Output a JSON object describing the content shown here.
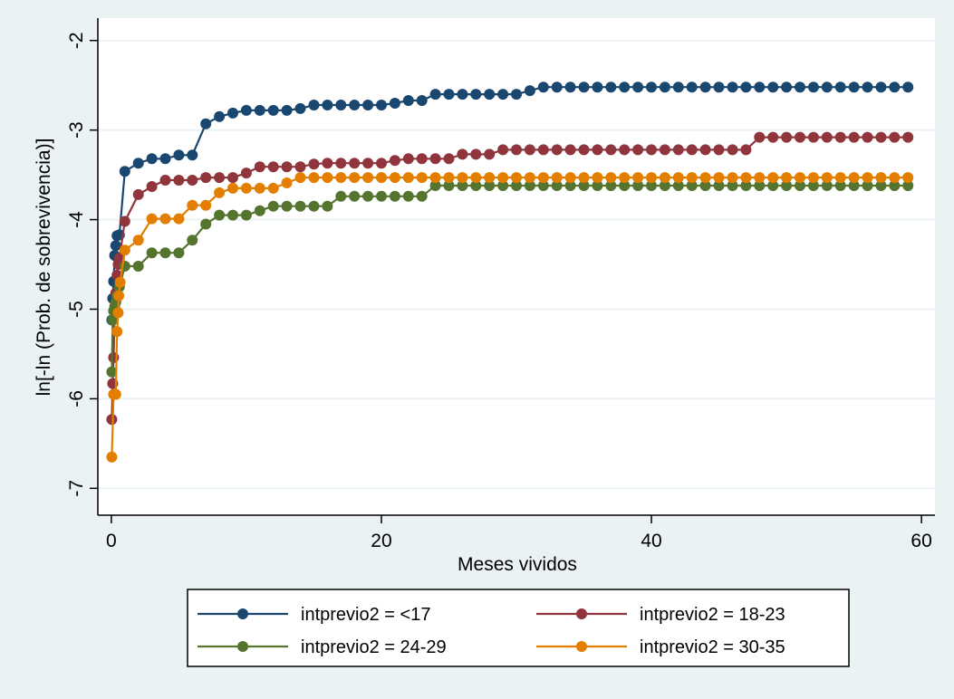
{
  "chart_data": {
    "type": "line",
    "xlabel": "Meses vividos",
    "ylabel": "ln[-ln (Prob. de sobrevivencia)]",
    "xlim": [
      -1,
      61
    ],
    "ylim": [
      -7.3,
      -1.75
    ],
    "xticks": [
      0,
      20,
      40,
      60
    ],
    "yticks": [
      -7,
      -6,
      -5,
      -4,
      -3,
      -2
    ],
    "grid": "horizontal",
    "legend_position": "bottom",
    "series": [
      {
        "name": "intprevio2 = <17",
        "color": "#1a476f",
        "points": [
          [
            0.03,
            -5.12
          ],
          [
            0.1,
            -4.88
          ],
          [
            0.17,
            -4.69
          ],
          [
            0.25,
            -4.4
          ],
          [
            0.33,
            -4.29
          ],
          [
            0.42,
            -4.18
          ],
          [
            0.6,
            -4.17
          ],
          [
            1,
            -3.46
          ],
          [
            2,
            -3.37
          ],
          [
            3,
            -3.32
          ],
          [
            4,
            -3.32
          ],
          [
            5,
            -3.28
          ],
          [
            6,
            -3.28
          ],
          [
            7,
            -2.93
          ],
          [
            8,
            -2.85
          ],
          [
            9,
            -2.81
          ],
          [
            10,
            -2.78
          ],
          [
            11,
            -2.78
          ],
          [
            12,
            -2.78
          ],
          [
            13,
            -2.78
          ],
          [
            14,
            -2.76
          ],
          [
            15,
            -2.72
          ],
          [
            16,
            -2.72
          ],
          [
            17,
            -2.72
          ],
          [
            18,
            -2.72
          ],
          [
            19,
            -2.72
          ],
          [
            20,
            -2.72
          ],
          [
            21,
            -2.7
          ],
          [
            22,
            -2.67
          ],
          [
            23,
            -2.67
          ],
          [
            24,
            -2.6
          ],
          [
            25,
            -2.6
          ],
          [
            26,
            -2.6
          ],
          [
            27,
            -2.6
          ],
          [
            28,
            -2.6
          ],
          [
            29,
            -2.6
          ],
          [
            30,
            -2.6
          ],
          [
            31,
            -2.56
          ],
          [
            32,
            -2.52
          ],
          [
            33,
            -2.52
          ],
          [
            34,
            -2.52
          ],
          [
            35,
            -2.52
          ],
          [
            36,
            -2.52
          ],
          [
            37,
            -2.52
          ],
          [
            38,
            -2.52
          ],
          [
            39,
            -2.52
          ],
          [
            40,
            -2.52
          ],
          [
            41,
            -2.52
          ],
          [
            42,
            -2.52
          ],
          [
            43,
            -2.52
          ],
          [
            44,
            -2.52
          ],
          [
            45,
            -2.52
          ],
          [
            46,
            -2.52
          ],
          [
            47,
            -2.52
          ],
          [
            48,
            -2.52
          ],
          [
            49,
            -2.52
          ],
          [
            50,
            -2.52
          ],
          [
            51,
            -2.52
          ],
          [
            52,
            -2.52
          ],
          [
            53,
            -2.52
          ],
          [
            54,
            -2.52
          ],
          [
            55,
            -2.52
          ],
          [
            56,
            -2.52
          ],
          [
            57,
            -2.52
          ],
          [
            58,
            -2.52
          ],
          [
            59,
            -2.52
          ]
        ]
      },
      {
        "name": "intprevio2 = 18-23",
        "color": "#90353b",
        "points": [
          [
            0.03,
            -6.23
          ],
          [
            0.1,
            -5.83
          ],
          [
            0.17,
            -5.54
          ],
          [
            0.25,
            -5.02
          ],
          [
            0.33,
            -4.82
          ],
          [
            0.42,
            -4.62
          ],
          [
            0.5,
            -4.5
          ],
          [
            0.6,
            -4.43
          ],
          [
            1,
            -4.02
          ],
          [
            2,
            -3.72
          ],
          [
            3,
            -3.63
          ],
          [
            4,
            -3.56
          ],
          [
            5,
            -3.56
          ],
          [
            6,
            -3.56
          ],
          [
            7,
            -3.53
          ],
          [
            8,
            -3.53
          ],
          [
            9,
            -3.53
          ],
          [
            10,
            -3.48
          ],
          [
            11,
            -3.41
          ],
          [
            12,
            -3.41
          ],
          [
            13,
            -3.41
          ],
          [
            14,
            -3.41
          ],
          [
            15,
            -3.38
          ],
          [
            16,
            -3.37
          ],
          [
            17,
            -3.37
          ],
          [
            18,
            -3.37
          ],
          [
            19,
            -3.37
          ],
          [
            20,
            -3.37
          ],
          [
            21,
            -3.34
          ],
          [
            22,
            -3.32
          ],
          [
            23,
            -3.32
          ],
          [
            24,
            -3.32
          ],
          [
            25,
            -3.32
          ],
          [
            26,
            -3.27
          ],
          [
            27,
            -3.27
          ],
          [
            28,
            -3.27
          ],
          [
            29,
            -3.22
          ],
          [
            30,
            -3.22
          ],
          [
            31,
            -3.22
          ],
          [
            32,
            -3.22
          ],
          [
            33,
            -3.22
          ],
          [
            34,
            -3.22
          ],
          [
            35,
            -3.22
          ],
          [
            36,
            -3.22
          ],
          [
            37,
            -3.22
          ],
          [
            38,
            -3.22
          ],
          [
            39,
            -3.22
          ],
          [
            40,
            -3.22
          ],
          [
            41,
            -3.22
          ],
          [
            42,
            -3.22
          ],
          [
            43,
            -3.22
          ],
          [
            44,
            -3.22
          ],
          [
            45,
            -3.22
          ],
          [
            46,
            -3.22
          ],
          [
            47,
            -3.22
          ],
          [
            48,
            -3.08
          ],
          [
            49,
            -3.08
          ],
          [
            50,
            -3.08
          ],
          [
            51,
            -3.08
          ],
          [
            52,
            -3.08
          ],
          [
            53,
            -3.08
          ],
          [
            54,
            -3.08
          ],
          [
            55,
            -3.08
          ],
          [
            56,
            -3.08
          ],
          [
            57,
            -3.08
          ],
          [
            58,
            -3.08
          ],
          [
            59,
            -3.08
          ]
        ]
      },
      {
        "name": "intprevio2 = 24-29",
        "color": "#55752f",
        "points": [
          [
            0.03,
            -5.7
          ],
          [
            0.1,
            -5.12
          ],
          [
            0.17,
            -5.02
          ],
          [
            0.25,
            -4.97
          ],
          [
            0.33,
            -4.92
          ],
          [
            0.42,
            -4.85
          ],
          [
            0.6,
            -4.75
          ],
          [
            1,
            -4.52
          ],
          [
            2,
            -4.52
          ],
          [
            3,
            -4.37
          ],
          [
            4,
            -4.37
          ],
          [
            5,
            -4.37
          ],
          [
            6,
            -4.23
          ],
          [
            7,
            -4.05
          ],
          [
            8,
            -3.95
          ],
          [
            9,
            -3.95
          ],
          [
            10,
            -3.95
          ],
          [
            11,
            -3.9
          ],
          [
            12,
            -3.85
          ],
          [
            13,
            -3.85
          ],
          [
            14,
            -3.85
          ],
          [
            15,
            -3.85
          ],
          [
            16,
            -3.85
          ],
          [
            17,
            -3.74
          ],
          [
            18,
            -3.74
          ],
          [
            19,
            -3.74
          ],
          [
            20,
            -3.74
          ],
          [
            21,
            -3.74
          ],
          [
            22,
            -3.74
          ],
          [
            23,
            -3.74
          ],
          [
            24,
            -3.62
          ],
          [
            25,
            -3.62
          ],
          [
            26,
            -3.62
          ],
          [
            27,
            -3.62
          ],
          [
            28,
            -3.62
          ],
          [
            29,
            -3.62
          ],
          [
            30,
            -3.62
          ],
          [
            31,
            -3.62
          ],
          [
            32,
            -3.62
          ],
          [
            33,
            -3.62
          ],
          [
            34,
            -3.62
          ],
          [
            35,
            -3.62
          ],
          [
            36,
            -3.62
          ],
          [
            37,
            -3.62
          ],
          [
            38,
            -3.62
          ],
          [
            39,
            -3.62
          ],
          [
            40,
            -3.62
          ],
          [
            41,
            -3.62
          ],
          [
            42,
            -3.62
          ],
          [
            43,
            -3.62
          ],
          [
            44,
            -3.62
          ],
          [
            45,
            -3.62
          ],
          [
            46,
            -3.62
          ],
          [
            47,
            -3.62
          ],
          [
            48,
            -3.62
          ],
          [
            49,
            -3.62
          ],
          [
            50,
            -3.62
          ],
          [
            51,
            -3.62
          ],
          [
            52,
            -3.62
          ],
          [
            53,
            -3.62
          ],
          [
            54,
            -3.62
          ],
          [
            55,
            -3.62
          ],
          [
            56,
            -3.62
          ],
          [
            57,
            -3.62
          ],
          [
            58,
            -3.62
          ],
          [
            59,
            -3.62
          ]
        ]
      },
      {
        "name": "intprevio2 = 30-35",
        "color": "#e37e00",
        "points": [
          [
            0.03,
            -6.65
          ],
          [
            0.17,
            -5.95
          ],
          [
            0.25,
            -5.95
          ],
          [
            0.33,
            -5.95
          ],
          [
            0.42,
            -5.25
          ],
          [
            0.5,
            -5.04
          ],
          [
            0.55,
            -4.85
          ],
          [
            0.65,
            -4.7
          ],
          [
            1,
            -4.34
          ],
          [
            2,
            -4.23
          ],
          [
            3,
            -3.99
          ],
          [
            4,
            -3.99
          ],
          [
            5,
            -3.99
          ],
          [
            6,
            -3.84
          ],
          [
            7,
            -3.84
          ],
          [
            8,
            -3.7
          ],
          [
            9,
            -3.65
          ],
          [
            10,
            -3.65
          ],
          [
            11,
            -3.65
          ],
          [
            12,
            -3.65
          ],
          [
            13,
            -3.59
          ],
          [
            14,
            -3.53
          ],
          [
            15,
            -3.53
          ],
          [
            16,
            -3.53
          ],
          [
            17,
            -3.53
          ],
          [
            18,
            -3.53
          ],
          [
            19,
            -3.53
          ],
          [
            20,
            -3.53
          ],
          [
            21,
            -3.53
          ],
          [
            22,
            -3.53
          ],
          [
            23,
            -3.53
          ],
          [
            24,
            -3.53
          ],
          [
            25,
            -3.53
          ],
          [
            26,
            -3.53
          ],
          [
            27,
            -3.53
          ],
          [
            28,
            -3.53
          ],
          [
            29,
            -3.53
          ],
          [
            30,
            -3.53
          ],
          [
            31,
            -3.53
          ],
          [
            32,
            -3.53
          ],
          [
            33,
            -3.53
          ],
          [
            34,
            -3.53
          ],
          [
            35,
            -3.53
          ],
          [
            36,
            -3.53
          ],
          [
            37,
            -3.53
          ],
          [
            38,
            -3.53
          ],
          [
            39,
            -3.53
          ],
          [
            40,
            -3.53
          ],
          [
            41,
            -3.53
          ],
          [
            42,
            -3.53
          ],
          [
            43,
            -3.53
          ],
          [
            44,
            -3.53
          ],
          [
            45,
            -3.53
          ],
          [
            46,
            -3.53
          ],
          [
            47,
            -3.53
          ],
          [
            48,
            -3.53
          ],
          [
            49,
            -3.53
          ],
          [
            50,
            -3.53
          ],
          [
            51,
            -3.53
          ],
          [
            52,
            -3.53
          ],
          [
            53,
            -3.53
          ],
          [
            54,
            -3.53
          ],
          [
            55,
            -3.53
          ],
          [
            56,
            -3.53
          ],
          [
            57,
            -3.53
          ],
          [
            58,
            -3.53
          ],
          [
            59,
            -3.53
          ]
        ]
      }
    ]
  },
  "colors": {
    "background": "#eaf2f3",
    "plot_background": "#ffffff",
    "grid": "#eaf2f3"
  }
}
